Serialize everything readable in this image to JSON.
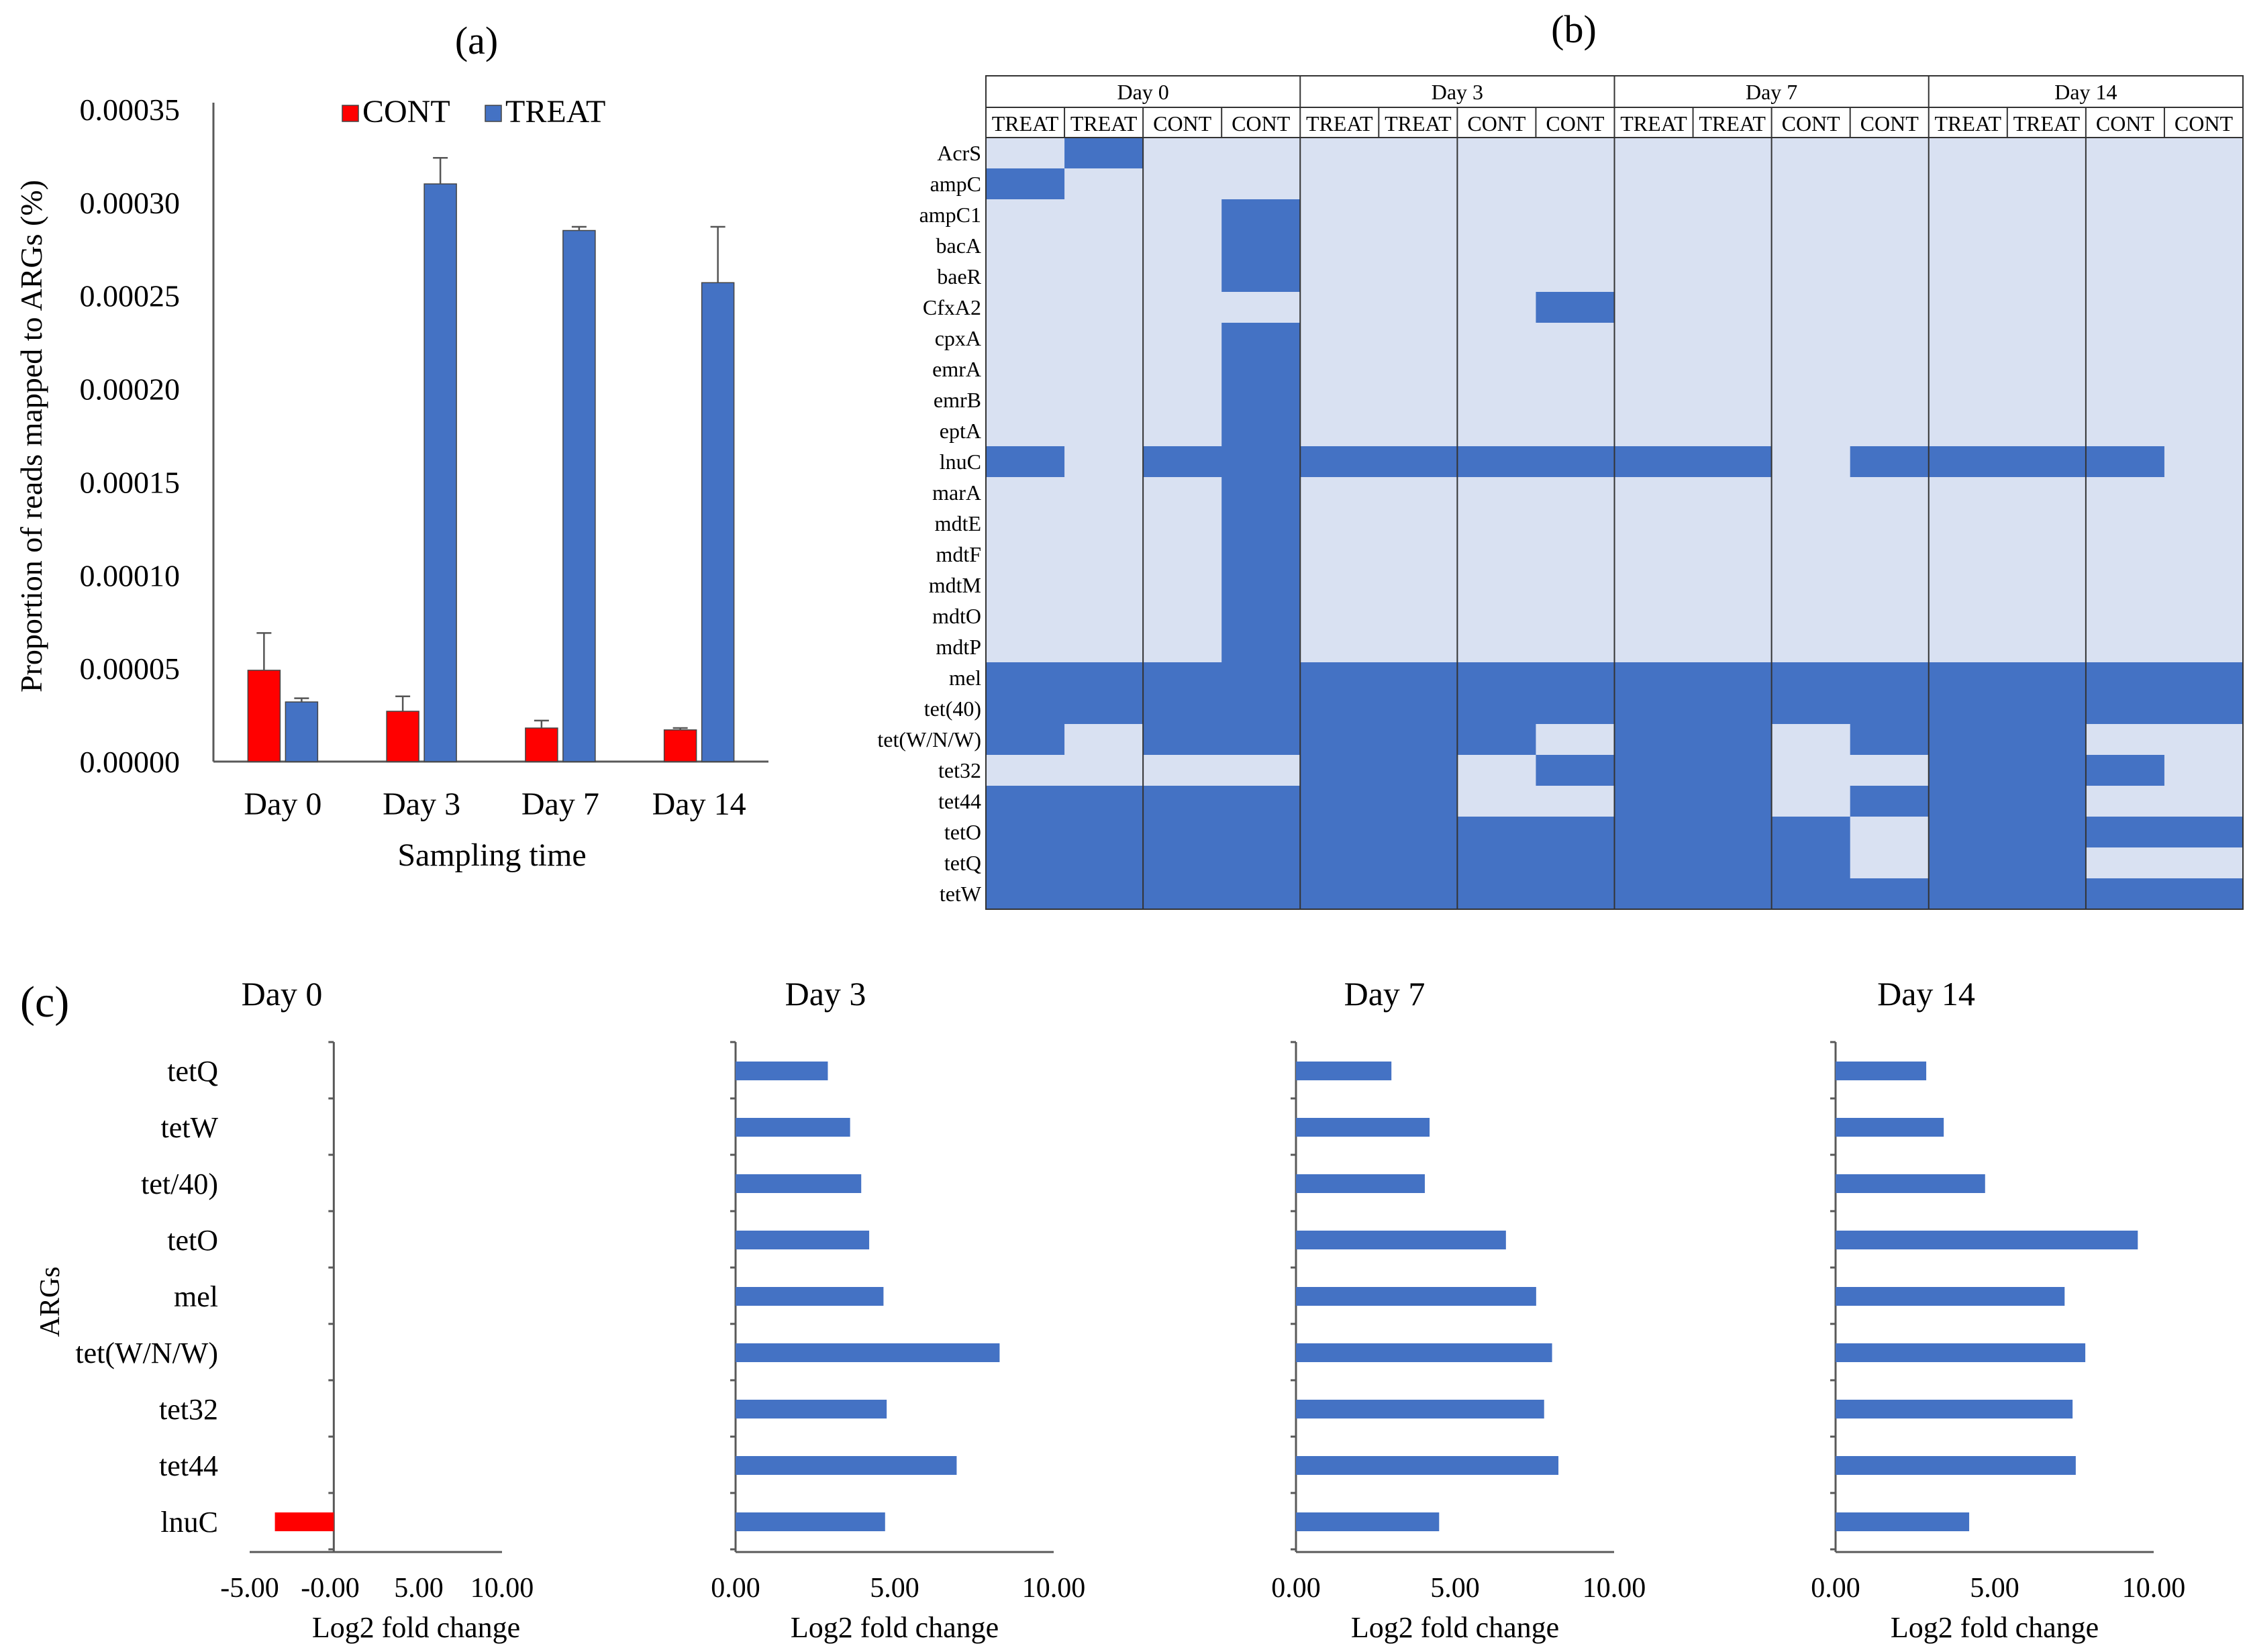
{
  "panel_labels": {
    "a": "(a)",
    "b": "(b)",
    "c": "(c)"
  },
  "colors": {
    "cont": "#FF0000",
    "treat": "#4472C4",
    "heat_light": "#D9E1F2",
    "heat_dark": "#4472C4",
    "axis": "#595959"
  },
  "chart_data": [
    {
      "type": "bar",
      "panel": "(a)",
      "categories": [
        "Day 0",
        "Day 3",
        "Day 7",
        "Day 14"
      ],
      "series": [
        {
          "name": "CONT",
          "values": [
            4.9e-05,
            2.7e-05,
            1.8e-05,
            1.7e-05
          ],
          "errors": [
            2e-05,
            8e-06,
            4e-06,
            1e-06
          ]
        },
        {
          "name": "TREAT",
          "values": [
            3.2e-05,
            0.00031,
            0.000285,
            0.000257
          ],
          "errors": [
            2e-06,
            1.4e-05,
            2e-06,
            3e-05
          ]
        }
      ],
      "xlabel": "Sampling time",
      "ylabel": "Proportion of reads mapped to ARGs (%)",
      "ylim": [
        0,
        0.00035
      ],
      "yticks": [
        "0.00000",
        "0.00005",
        "0.00010",
        "0.00015",
        "0.00020",
        "0.00025",
        "0.00030",
        "0.00035"
      ],
      "legend": "top"
    },
    {
      "type": "heatmap",
      "panel": "(b)",
      "groups": [
        "Day 0",
        "Day 3",
        "Day 7",
        "Day 14"
      ],
      "columns": [
        "TREAT",
        "TREAT",
        "CONT",
        "CONT"
      ],
      "rows": [
        "AcrS",
        "ampC",
        "ampC1",
        "bacA",
        "baeR",
        "CfxA2",
        "cpxA",
        "emrA",
        "emrB",
        "eptA",
        "lnuC",
        "marA",
        "mdtE",
        "mdtF",
        "mdtM",
        "mdtO",
        "mdtP",
        "mel",
        "tet(40)",
        "tet(W/N/W)",
        "tet32",
        "tet44",
        "tetO",
        "tetQ",
        "tetW"
      ],
      "matrix": [
        "0100000000000000",
        "1000000000000000",
        "0001000000000000",
        "0001000000000000",
        "0001000000000000",
        "0000000100000000",
        "0001000000000000",
        "0001000000000000",
        "0001000000000000",
        "0001000000000000",
        "1011111111011110",
        "0001000000000000",
        "0001000000000000",
        "0001000000000000",
        "0001000000000000",
        "0001000000000000",
        "0001000000000000",
        "1111111111111111",
        "1111111111111111",
        "1011111011011100",
        "0000110111001110",
        "1111110011011100",
        "1111111111101111",
        "1111111111101100",
        "1111111111111111"
      ]
    },
    {
      "type": "bar",
      "orientation": "horizontal",
      "panel": "(c)",
      "ylabel": "ARGs",
      "xlabel": "Log2 fold change",
      "categories": [
        "tetQ",
        "tetW",
        "tet/40)",
        "tetO",
        "mel",
        "tet(W/N/W)",
        "tet32",
        "tet44",
        "lnuC"
      ],
      "subplots": [
        {
          "title": "Day 0",
          "xlim": [
            -5,
            10
          ],
          "xticks": [
            "-5.00",
            "-0.00",
            "5.00",
            "10.00"
          ],
          "values": [
            0,
            0,
            0,
            0,
            0,
            0,
            0,
            0,
            -3.5
          ]
        },
        {
          "title": "Day 3",
          "xlim": [
            0,
            10
          ],
          "xticks": [
            "0.00",
            "5.00",
            "10.00"
          ],
          "values": [
            2.9,
            3.6,
            3.95,
            4.2,
            4.65,
            8.3,
            4.75,
            6.95,
            4.7
          ]
        },
        {
          "title": "Day 7",
          "xlim": [
            0,
            10
          ],
          "xticks": [
            "0.00",
            "5.00",
            "10.00"
          ],
          "values": [
            3.0,
            4.2,
            4.05,
            6.6,
            7.55,
            8.05,
            7.8,
            8.25,
            4.5
          ]
        },
        {
          "title": "Day 14",
          "xlim": [
            0,
            10
          ],
          "xticks": [
            "0.00",
            "5.00",
            "10.00"
          ],
          "values": [
            2.85,
            3.4,
            4.7,
            9.5,
            7.2,
            7.85,
            7.45,
            7.55,
            4.2
          ]
        }
      ]
    }
  ]
}
